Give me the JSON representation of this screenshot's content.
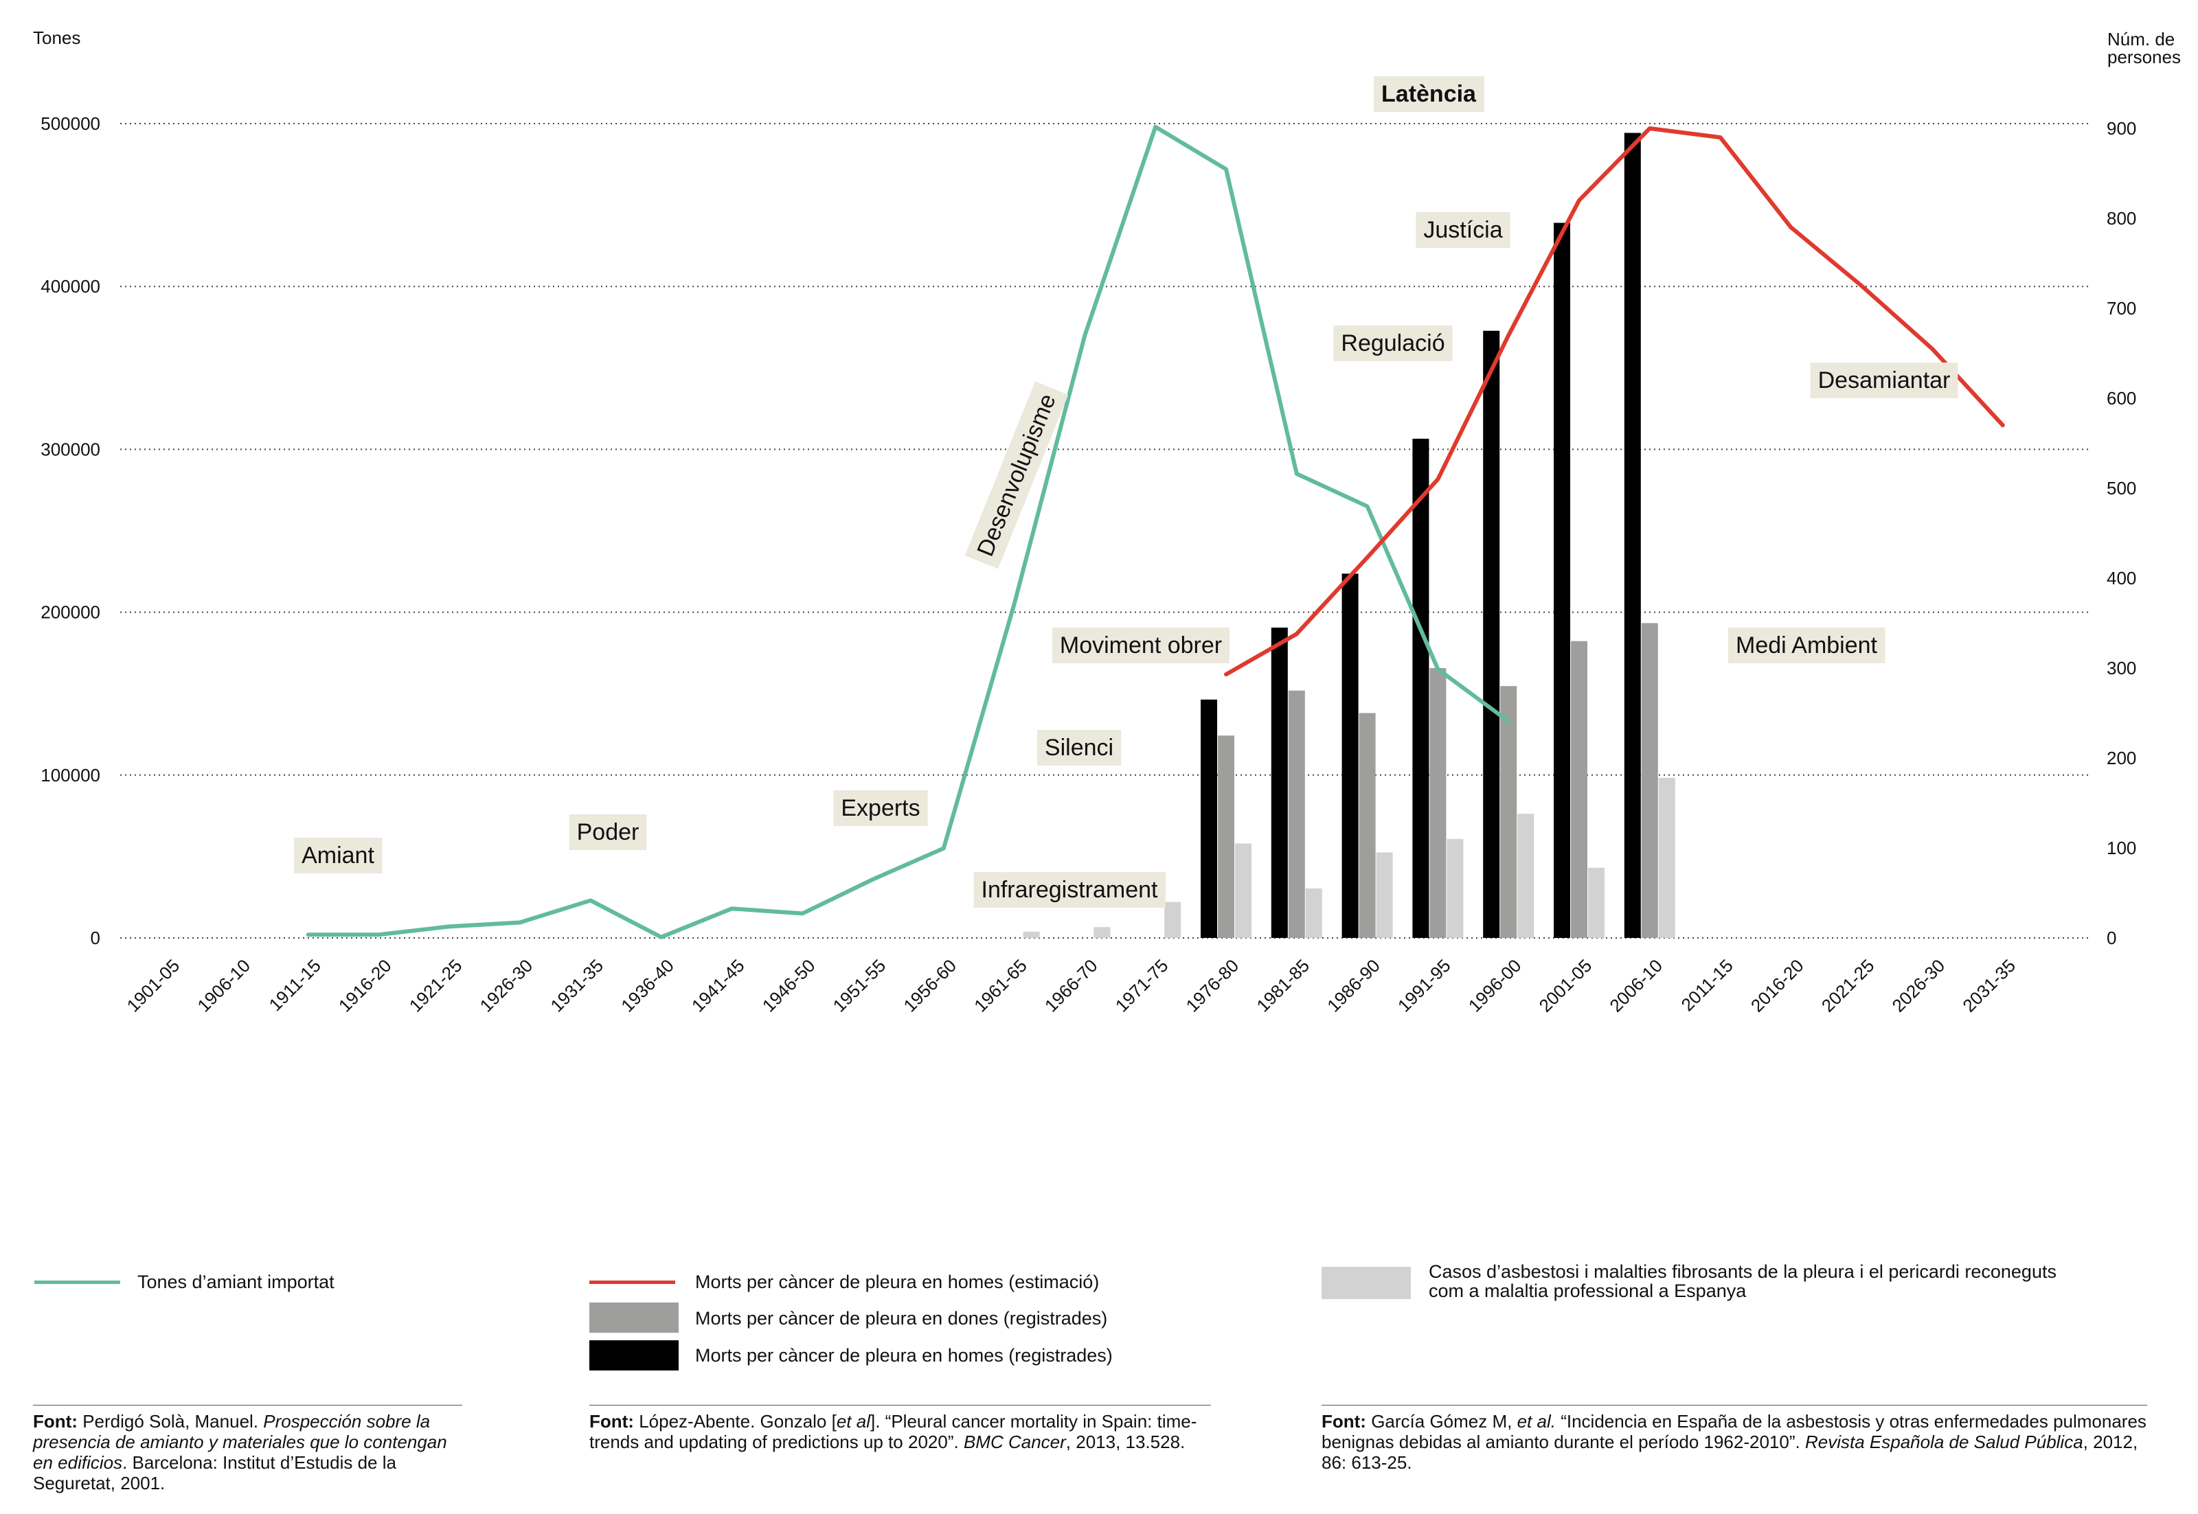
{
  "chart_data": {
    "type": "bar+line",
    "left_axis_title": "Tones",
    "right_axis_title_lines": [
      "Núm. de",
      "persones"
    ],
    "left_ticks": [
      "0",
      "100000",
      "200000",
      "300000",
      "400000",
      "500000"
    ],
    "right_ticks": [
      "0",
      "100",
      "200",
      "300",
      "400",
      "500",
      "600",
      "700",
      "800",
      "900"
    ],
    "ylim_left": [
      0,
      500000
    ],
    "ylim_right": [
      0,
      900
    ],
    "categories": [
      "1901-05",
      "1906-10",
      "1911-15",
      "1916-20",
      "1921-25",
      "1926-30",
      "1931-35",
      "1936-40",
      "1941-45",
      "1946-50",
      "1951-55",
      "1956-60",
      "1961-65",
      "1966-70",
      "1971-75",
      "1976-80",
      "1981-85",
      "1986-90",
      "1991-95",
      "1996-00",
      "2001-05",
      "2006-10",
      "2011-15",
      "2016-20",
      "2021-25",
      "2026-30",
      "2031-35"
    ],
    "grid": "dotted horizontal",
    "series": [
      {
        "name": "Tones d’amiant importat",
        "kind": "line",
        "axis": "left",
        "color": "#62bb9b",
        "values": [
          null,
          null,
          2000,
          2000,
          7000,
          9500,
          23000,
          500,
          18000,
          15000,
          36000,
          55000,
          205000,
          370000,
          498000,
          472000,
          285000,
          265000,
          165000,
          133000,
          null,
          null,
          null,
          null,
          null,
          null,
          null
        ]
      },
      {
        "name": "Morts per càncer de pleura en homes (estimació)",
        "kind": "line",
        "axis": "right",
        "color": "#e03a2e",
        "values": [
          null,
          null,
          null,
          null,
          null,
          null,
          null,
          null,
          null,
          null,
          null,
          null,
          null,
          null,
          null,
          293,
          338,
          423,
          510,
          670,
          820,
          900,
          890,
          790,
          725,
          655,
          570
        ]
      },
      {
        "name": "Morts per càncer de pleura en homes (registrades)",
        "kind": "bar",
        "axis": "right",
        "color": "#000000",
        "values": [
          null,
          null,
          null,
          null,
          null,
          null,
          null,
          null,
          null,
          null,
          null,
          null,
          null,
          null,
          null,
          265,
          345,
          405,
          555,
          675,
          795,
          895,
          null,
          null,
          null,
          null,
          null
        ]
      },
      {
        "name": "Morts per càncer de pleura en dones (registrades)",
        "kind": "bar",
        "axis": "right",
        "color": "#9e9e9c",
        "values": [
          null,
          null,
          null,
          null,
          null,
          null,
          null,
          null,
          null,
          null,
          null,
          null,
          null,
          null,
          null,
          225,
          275,
          250,
          300,
          280,
          330,
          350,
          null,
          null,
          null,
          null,
          null
        ]
      },
      {
        "name": "Casos d’asbestosi i malalties fibrosants de la pleura i el pericardi reconeguts com a malaltia professional a Espanya",
        "kind": "bar",
        "axis": "right",
        "color": "#d2d2d2",
        "values": [
          null,
          null,
          null,
          null,
          null,
          null,
          null,
          null,
          null,
          null,
          null,
          null,
          7,
          12,
          40,
          105,
          55,
          95,
          110,
          138,
          78,
          178,
          null,
          null,
          null,
          null,
          null
        ]
      }
    ],
    "annotations": [
      {
        "text": "Amiant",
        "bold": false
      },
      {
        "text": "Poder",
        "bold": false
      },
      {
        "text": "Experts",
        "bold": false
      },
      {
        "text": "Infraregistrament",
        "bold": false
      },
      {
        "text": "Silenci",
        "bold": false
      },
      {
        "text": "Moviment obrer",
        "bold": false
      },
      {
        "text": "Desenvolupisme",
        "bold": false
      },
      {
        "text": "Latència",
        "bold": true
      },
      {
        "text": "Justícia",
        "bold": false
      },
      {
        "text": "Regulació",
        "bold": false
      },
      {
        "text": "Desamiantar",
        "bold": false
      },
      {
        "text": "Medi Ambient",
        "bold": false
      }
    ]
  },
  "legend": {
    "tones": "Tones d’amiant importat",
    "est": "Morts per càncer de pleura en homes (estimació)",
    "women": "Morts per càncer de pleura en dones (registrades)",
    "men": "Morts per càncer de pleura en homes (registrades)",
    "cases_line1": "Casos d’asbestosi i malalties fibrosants de la pleura i el pericardi reconeguts",
    "cases_line2": "com a malaltia professional a Espanya"
  },
  "sources": {
    "label": "Font:",
    "s1": {
      "a": "Perdigó Solà, Manuel.",
      "b": "Prospección sobre la presencia de amianto y materiales que lo contengan en edificios",
      "c": ". Barcelona: Institut d’Estudis de la Seguretat, 2001."
    },
    "s2": {
      "a": "López-Abente. Gonzalo [",
      "b": "et al",
      "c": "]. “Pleural cancer mortality in Spain: time-trends and updating of predictions up to 2020”.",
      "d": "BMC Cancer",
      "e": ", 2013, 13.528."
    },
    "s3": {
      "a": "García Gómez M,",
      "b": "et al.",
      "c": "“Incidencia en España de la asbestosis y otras enfermedades pulmonares benignas debidas al amianto durante el período 1962-2010”.",
      "d": "Revista Española de Salud Pública",
      "e": ", 2012, 86: 613-25."
    }
  }
}
